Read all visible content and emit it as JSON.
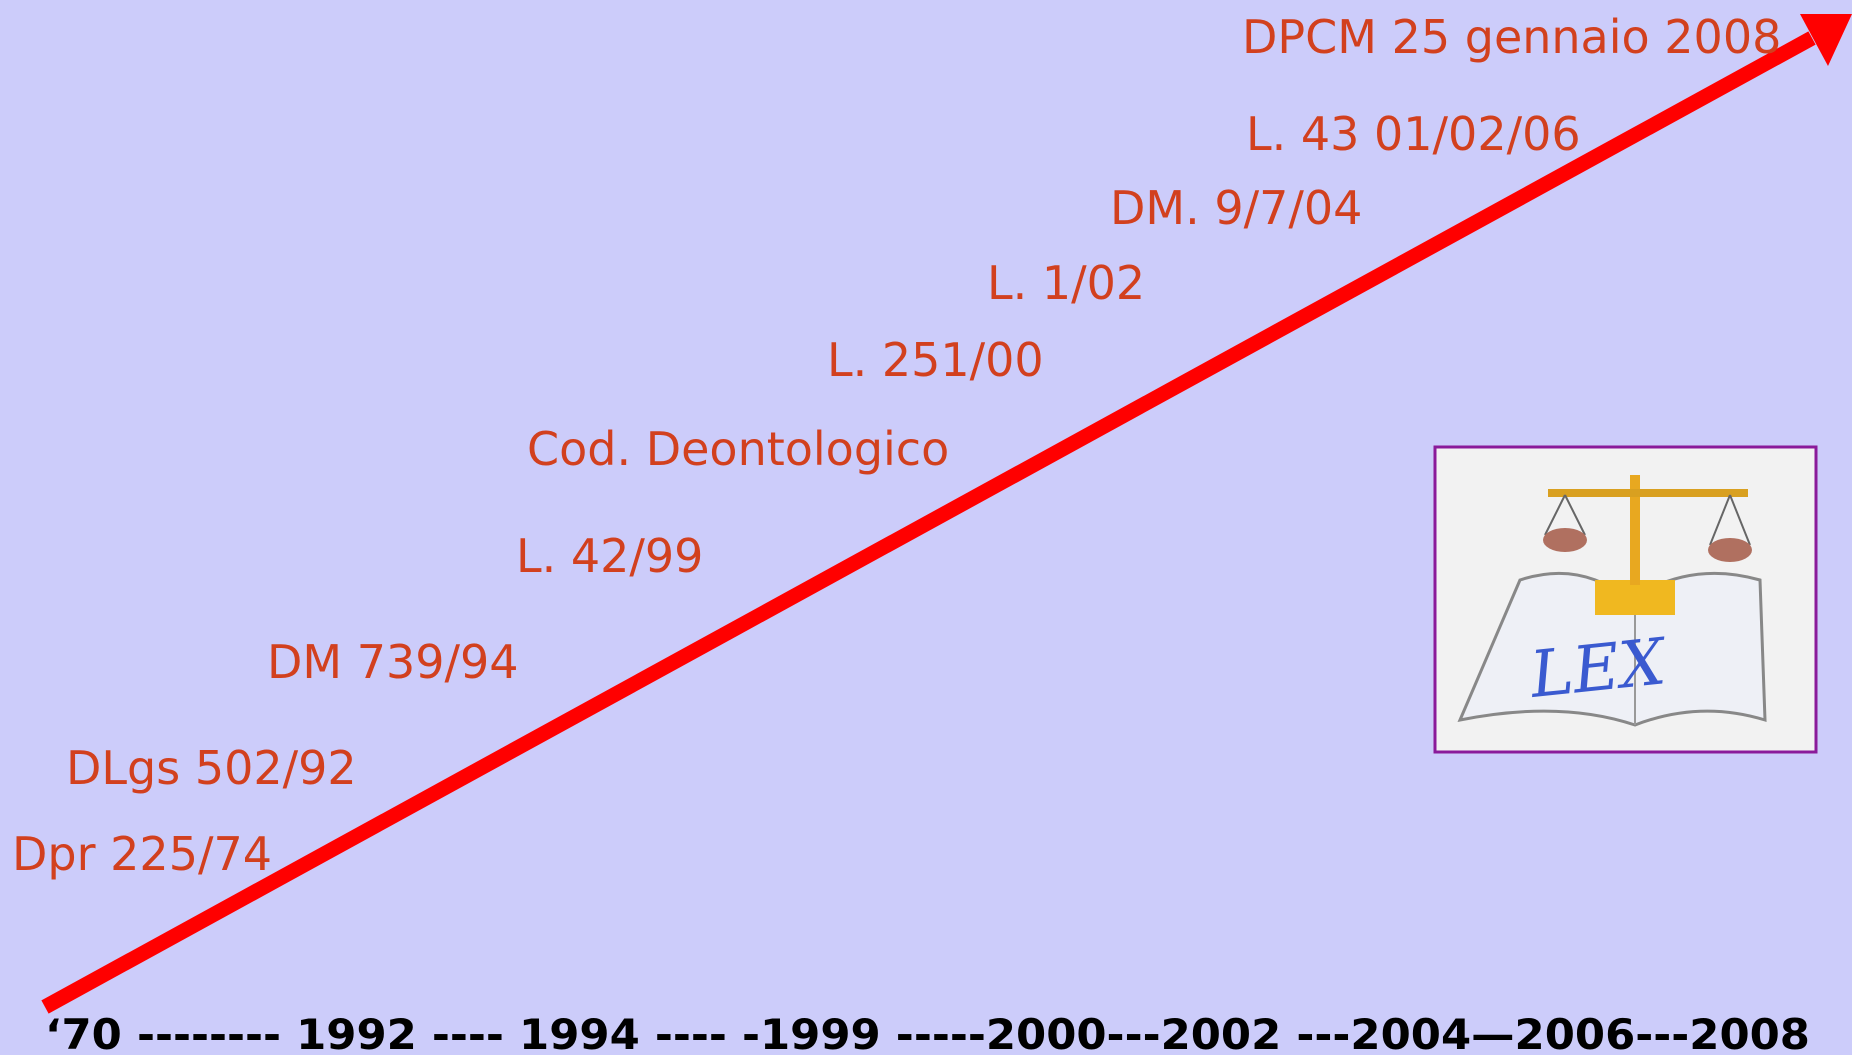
{
  "timeline": {
    "events": [
      "DPCM 25 gennaio 2008",
      "L. 43 01/02/06",
      "DM. 9/7/04",
      "L. 1/02",
      "L. 251/00",
      "Cod. Deontologico",
      "L. 42/99",
      "DM 739/94",
      "DLgs 502/92",
      "Dpr 225/74"
    ],
    "axis": "‘70 -------- 1992 ---- 1994 ---- -1999 -----2000---2002 ---2004—2006---2008"
  },
  "logo": {
    "text": "LEX"
  }
}
